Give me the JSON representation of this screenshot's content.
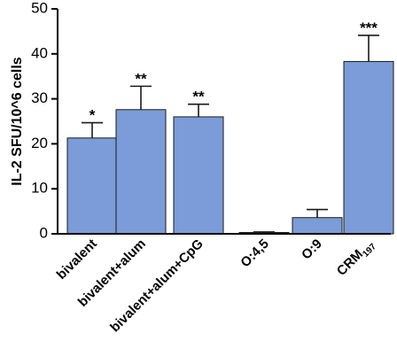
{
  "chart_data": {
    "type": "bar",
    "title": "",
    "xlabel": "",
    "ylabel": "IL-2 SFU/10^6 cells",
    "ylim": [
      0,
      50
    ],
    "yticks": [
      0,
      10,
      20,
      30,
      40,
      50
    ],
    "grid": false,
    "legend": "none",
    "bar_color": "#7B9CD8",
    "categories": [
      "bivalent",
      "bivalent+alum",
      "bivalent+alum+CpG",
      "O:4,5",
      "O:9",
      "CRM197"
    ],
    "category_labels": [
      {
        "main": "bivalent",
        "sub": ""
      },
      {
        "main": "bivalent+alum",
        "sub": ""
      },
      {
        "main": "bivalent+alum+CpG",
        "sub": ""
      },
      {
        "main": "O:4,5",
        "sub": ""
      },
      {
        "main": "O:9",
        "sub": ""
      },
      {
        "main": "CRM",
        "sub": "197"
      }
    ],
    "values": [
      21.3,
      27.6,
      26.0,
      0.3,
      3.6,
      38.3
    ],
    "errors": [
      3.4,
      5.2,
      2.8,
      0.1,
      1.8,
      5.8
    ],
    "significance": [
      "*",
      "**",
      "**",
      "",
      "",
      "***"
    ]
  }
}
